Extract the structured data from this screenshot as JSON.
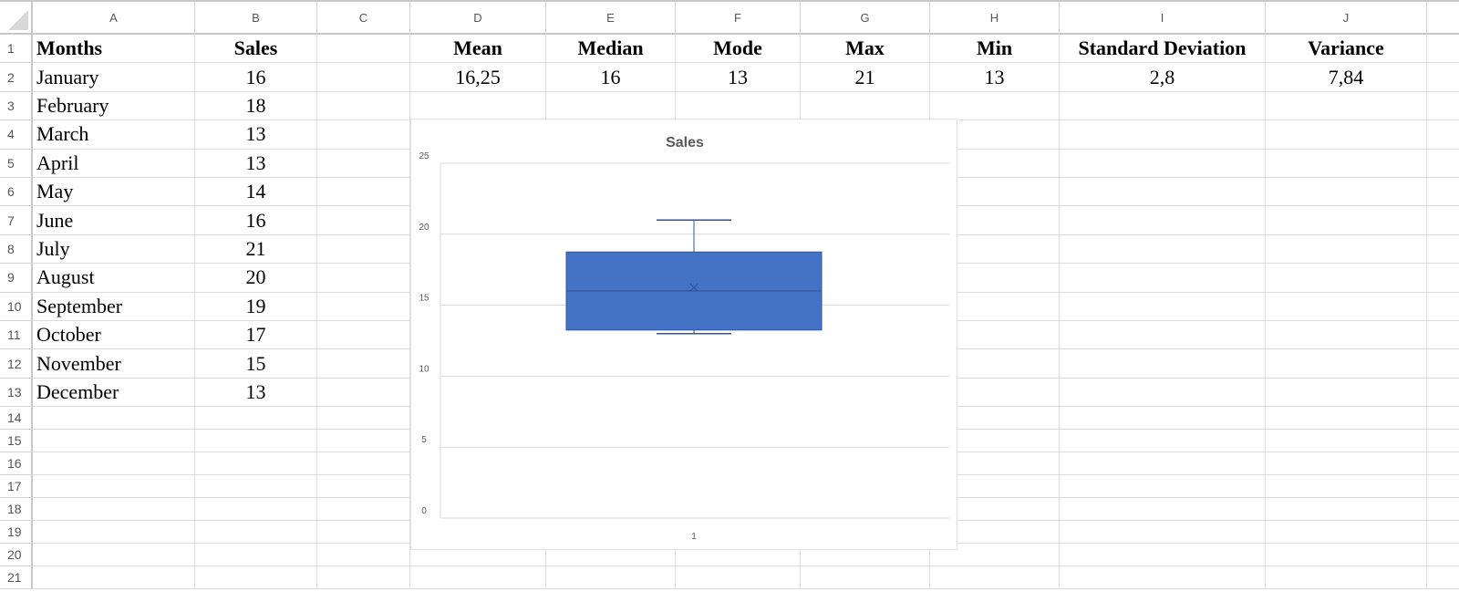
{
  "columns": [
    "A",
    "B",
    "C",
    "D",
    "E",
    "F",
    "G",
    "H",
    "I",
    "J"
  ],
  "row_numbers": [
    "1",
    "2",
    "3",
    "4",
    "5",
    "6",
    "7",
    "8",
    "9",
    "10",
    "11",
    "12",
    "13",
    "14",
    "15",
    "16",
    "17",
    "18",
    "19",
    "20",
    "21"
  ],
  "cells": {
    "A1": "Months",
    "B1": "Sales",
    "D1": "Mean",
    "E1": "Median",
    "F1": "Mode",
    "G1": "Max",
    "H1": "Min",
    "I1": "Standard Deviation",
    "J1": "Variance",
    "D2": "16,25",
    "E2": "16",
    "F2": "13",
    "G2": "21",
    "H2": "13",
    "I2": "2,8",
    "J2": "7,84",
    "A2": "January",
    "B2": "16",
    "A3": "February",
    "B3": "18",
    "A4": "March",
    "B4": "13",
    "A5": "April",
    "B5": "13",
    "A6": "May",
    "B6": "14",
    "A7": "June",
    "B7": "16",
    "A8": "July",
    "B8": "21",
    "A9": "August",
    "B9": "20",
    "A10": "September",
    "B10": "19",
    "A11": "October",
    "B11": "17",
    "A12": "November",
    "B12": "15",
    "A13": "December",
    "B13": "13"
  },
  "chart_data": {
    "type": "box",
    "title": "Sales",
    "categories": [
      "1"
    ],
    "ylim": [
      0,
      25
    ],
    "yticks": [
      "0",
      "5",
      "10",
      "15",
      "20",
      "25"
    ],
    "grid": true,
    "box": {
      "min": 13,
      "q1": 13.25,
      "median": 16,
      "q3": 18.75,
      "max": 21,
      "mean": 16.25
    },
    "color": "#4472C4"
  }
}
